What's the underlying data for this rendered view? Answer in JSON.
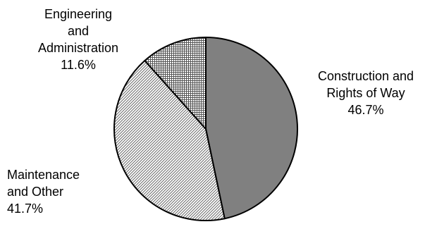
{
  "chart_data": {
    "type": "pie",
    "title": "",
    "slices": [
      {
        "name": "Construction and Rights of Way",
        "lines": [
          "Construction and",
          "Rights of Way"
        ],
        "percent_label": "46.7%",
        "value": 46.7,
        "fill": "dark-gray",
        "color": "#808080"
      },
      {
        "name": "Maintenance and Other",
        "lines": [
          "Maintenance",
          "and Other"
        ],
        "percent_label": "41.7%",
        "value": 41.7,
        "fill": "diagonal-hatch",
        "color": "#c8c8c8"
      },
      {
        "name": "Engineering and Administration",
        "lines": [
          "Engineering",
          "and",
          "Administration"
        ],
        "percent_label": "11.6%",
        "value": 11.6,
        "fill": "crosshatch",
        "color": "#b0b0b0"
      }
    ]
  }
}
